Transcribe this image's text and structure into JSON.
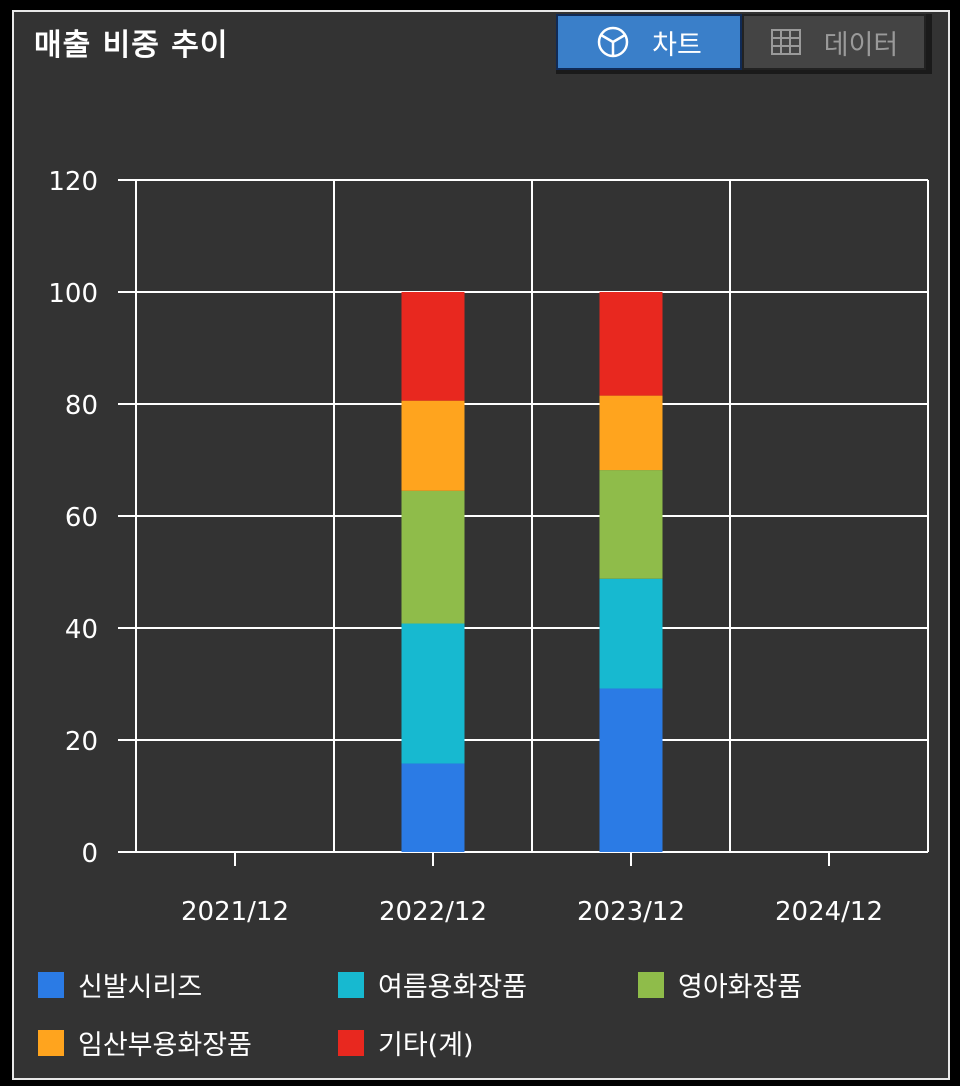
{
  "title": "매출 비중 추이",
  "toggle": {
    "chart_label": "차트",
    "data_label": "데이터",
    "chart_icon": "pie-chart-icon",
    "data_icon": "table-grid-icon"
  },
  "colors": {
    "background": "#333333",
    "grid": "#ffffff",
    "active_button": "#3a7fc9"
  },
  "chart_data": {
    "type": "bar",
    "stacked": true,
    "title": "",
    "xlabel": "",
    "ylabel": "",
    "ylim": [
      0,
      120
    ],
    "yticks": [
      "0",
      "20",
      "40",
      "60",
      "80",
      "100",
      "120"
    ],
    "categories": [
      "2021/12",
      "2022/12",
      "2023/12",
      "2024/12"
    ],
    "grid": true,
    "legend_position": "bottom",
    "series": [
      {
        "name": "신발시리즈",
        "color": "#2b7be5",
        "values": [
          0,
          15.8,
          29.2,
          0
        ]
      },
      {
        "name": "여름용화장품",
        "color": "#17b9d0",
        "values": [
          0,
          25,
          19.6,
          0
        ]
      },
      {
        "name": "영아화장품",
        "color": "#8fbc4a",
        "values": [
          0,
          23.7,
          19.4,
          0
        ]
      },
      {
        "name": "임산부용화장품",
        "color": "#ffa41e",
        "values": [
          0,
          16.1,
          13.3,
          0
        ]
      },
      {
        "name": "기타(계)",
        "color": "#e8281f",
        "values": [
          0,
          19.4,
          18.5,
          0
        ]
      }
    ]
  }
}
